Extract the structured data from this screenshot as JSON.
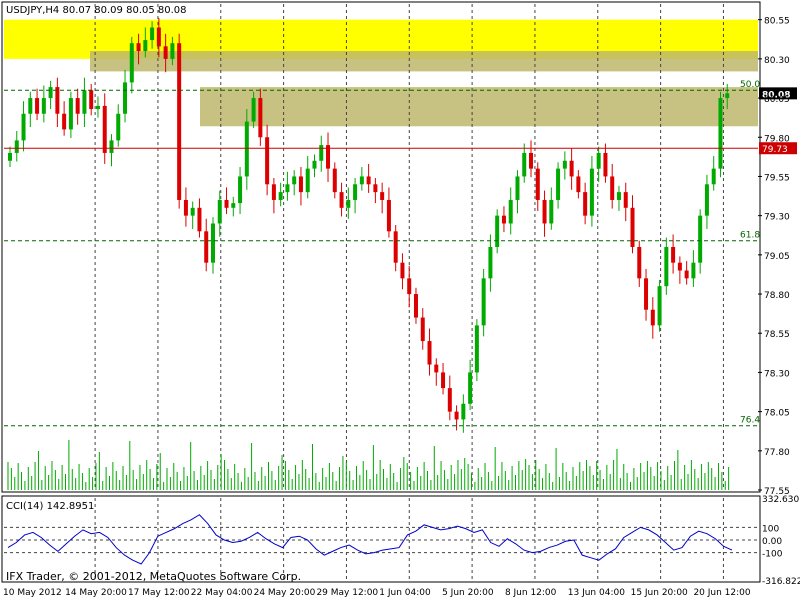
{
  "chart_data": [
    {
      "type": "candlestick",
      "symbol": "USDJPY",
      "timeframe": "H4",
      "header_label": "USDJPY,H4  80.07 80.09 80.05 80.08",
      "ohlc": {
        "open": 80.07,
        "high": 80.09,
        "low": 80.05,
        "close": 80.08
      },
      "ylim": [
        77.55,
        80.65
      ],
      "y_ticks": [
        "80.55",
        "80.30",
        "80.05",
        "79.80",
        "79.55",
        "79.30",
        "79.05",
        "78.80",
        "78.55",
        "78.30",
        "78.05",
        "77.80",
        "77.55"
      ],
      "x_ticks": [
        "10 May 2012",
        "14 May 20:00",
        "17 May 12:00",
        "22 May 04:00",
        "24 May 20:00",
        "29 May 12:00",
        "1 Jun 04:00",
        "5 Jun 20:00",
        "8 Jun 12:00",
        "13 Jun 04:00",
        "15 Jun 20:00",
        "20 Jun 12:00"
      ],
      "grid": true,
      "current_price": {
        "label": "80.08",
        "value": 80.08
      },
      "horizontal_line": {
        "label": "79.73",
        "value": 79.73,
        "color": "#cc0000"
      },
      "fibonacci_levels": [
        {
          "label": "50.0",
          "value": 80.1
        },
        {
          "label": "61.8",
          "value": 79.14
        },
        {
          "label": "76.4",
          "value": 77.96
        }
      ],
      "zones": [
        {
          "name": "yellow-resistance",
          "from": 80.3,
          "to": 80.55,
          "color": "#ffff00"
        },
        {
          "name": "grey-band",
          "from": 80.22,
          "to": 80.35,
          "color": "#bdb76b"
        },
        {
          "name": "olive-resistance",
          "from": 79.87,
          "to": 80.12,
          "color": "#bdb76b"
        }
      ],
      "series_close": [
        79.7,
        79.78,
        79.95,
        80.05,
        79.95,
        80.05,
        80.12,
        79.95,
        79.85,
        80.05,
        79.95,
        80.1,
        79.98,
        80.0,
        79.7,
        79.78,
        79.95,
        80.15,
        80.4,
        80.35,
        80.42,
        80.5,
        80.38,
        80.3,
        80.4,
        79.4,
        79.3,
        79.35,
        79.2,
        79.0,
        79.25,
        79.4,
        79.35,
        79.38,
        79.55,
        79.9,
        80.05,
        79.8,
        79.5,
        79.4,
        79.45,
        79.5,
        79.55,
        79.45,
        79.6,
        79.65,
        79.75,
        79.6,
        79.45,
        79.35,
        79.4,
        79.5,
        79.55,
        79.5,
        79.45,
        79.4,
        79.2,
        79.0,
        78.9,
        78.8,
        78.65,
        78.5,
        78.35,
        78.3,
        78.2,
        78.05,
        78.0,
        78.1,
        78.3,
        78.6,
        78.9,
        79.1,
        79.3,
        79.25,
        79.4,
        79.55,
        79.7,
        79.6,
        79.4,
        79.25,
        79.4,
        79.6,
        79.65,
        79.55,
        79.45,
        79.3,
        79.6,
        79.7,
        79.55,
        79.4,
        79.45,
        79.35,
        79.1,
        78.9,
        78.7,
        78.6,
        78.85,
        79.1,
        79.0,
        78.95,
        78.9,
        79.0,
        79.3,
        79.5,
        79.6,
        80.05,
        80.08
      ]
    },
    {
      "type": "line",
      "title": "CCI(14) 142.8951",
      "indicator": "CCI(14)",
      "current_value": 142.8951,
      "ylim": [
        -316.822,
        332.6307
      ],
      "y_ticks": [
        "332.6307",
        "100",
        "0.00",
        "-100",
        "-316.822"
      ],
      "reference_levels": [
        100,
        0,
        -100
      ],
      "series_values": [
        -60,
        -20,
        40,
        60,
        20,
        -40,
        -90,
        -30,
        30,
        80,
        50,
        60,
        20,
        -60,
        -120,
        -160,
        -190,
        -100,
        30,
        60,
        90,
        130,
        160,
        200,
        130,
        40,
        0,
        -20,
        -10,
        20,
        60,
        10,
        -30,
        -60,
        20,
        30,
        0,
        -70,
        -120,
        -90,
        -60,
        -40,
        -80,
        -110,
        -100,
        -80,
        -70,
        -60,
        40,
        70,
        120,
        100,
        80,
        90,
        110,
        90,
        60,
        80,
        -20,
        -50,
        10,
        -30,
        -80,
        -100,
        -90,
        -60,
        -40,
        -10,
        0,
        -120,
        -140,
        -160,
        -110,
        -70,
        20,
        60,
        100,
        80,
        40,
        -20,
        -80,
        -60,
        30,
        70,
        50,
        10,
        -50,
        -80
      ]
    }
  ],
  "ui": {
    "watermark": "IFX Trader, © 2001-2012, MetaQuotes Software Corp.",
    "colors": {
      "bull": "#00aa00",
      "bear": "#dd0000",
      "grid": "#444444",
      "fib": "#006600",
      "cci_line": "#0000cc",
      "price_badge": "#000000",
      "line_badge": "#cc0000",
      "zone_yellow": "#ffff00",
      "zone_olive": "#bdb76b"
    }
  }
}
